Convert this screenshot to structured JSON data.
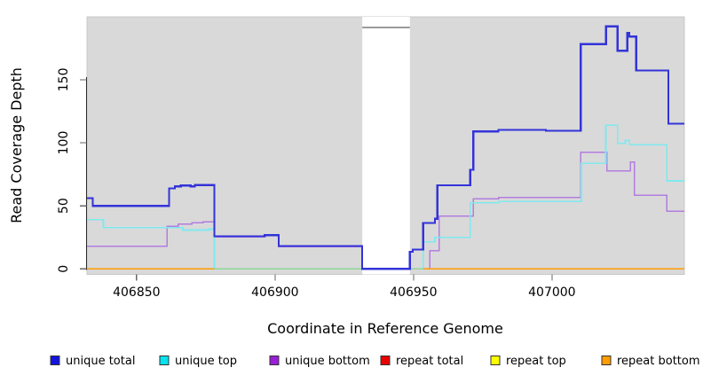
{
  "chart_data": {
    "type": "line",
    "subtype": "step-coverage-plot",
    "title": "",
    "xlabel": "Coordinate in Reference Genome",
    "ylabel": "Read Coverage Depth",
    "xlim": [
      406832.1,
      407047.8
    ],
    "ylim": [
      0,
      200
    ],
    "x_ticks": [
      406850,
      406900,
      406950,
      407000
    ],
    "y_ticks": [
      0,
      50,
      100,
      150
    ],
    "panel_background": "#d9d9d9",
    "panel_border_color": "#c8c8c8",
    "axis_color": "#2b2b2b",
    "tick_color": "#666666",
    "masked_region": {
      "from": 406931.5,
      "to": 406948.7,
      "color": "#ffffff",
      "top_edge_value": 191.4,
      "top_edge_color": "#9a9a9a"
    },
    "series": [
      {
        "id": "repeat-total",
        "name": "repeat total",
        "line_color": "#e80202",
        "legend_color": "#e80202",
        "step_points": [
          [
            406832.1,
            0
          ]
        ]
      },
      {
        "id": "repeat-top",
        "name": "repeat top",
        "line_color": "#fdfd02",
        "legend_color": "#fdfd02",
        "step_points": [
          [
            406832.1,
            0
          ]
        ]
      },
      {
        "id": "repeat-bottom",
        "name": "repeat bottom",
        "line_color": "#ff9c00",
        "legend_color": "#ff9c00",
        "step_points": [
          [
            406832.1,
            0
          ]
        ]
      },
      {
        "id": "unique-bottom",
        "name": "unique bottom",
        "line_color": "#b27de0",
        "legend_color": "#9a1ed6",
        "step_points": [
          [
            406832.1,
            18
          ],
          [
            406861,
            33.9
          ],
          [
            406865,
            35.6
          ],
          [
            406870,
            36.7
          ],
          [
            406874,
            37.4
          ],
          [
            406878.1,
            25.4
          ],
          [
            406896.3,
            26.4
          ],
          [
            406901.3,
            17.8
          ],
          [
            406931.5,
            0
          ],
          [
            406955.9,
            14.6
          ],
          [
            406959.3,
            41.9
          ],
          [
            406971.6,
            55.5
          ],
          [
            406980.7,
            56.5
          ],
          [
            407010.3,
            92.4
          ],
          [
            407019.9,
            77.7
          ],
          [
            407028.3,
            84.8
          ],
          [
            407029.8,
            58.5
          ],
          [
            407041.5,
            45.7
          ]
        ]
      },
      {
        "id": "unique-top",
        "name": "unique top",
        "line_color": "#7fe9ef",
        "legend_color": "#06e3ee",
        "step_points": [
          [
            406832.1,
            39.1
          ],
          [
            406838,
            32.8
          ],
          [
            406866.7,
            30.8
          ],
          [
            406876,
            31.5
          ],
          [
            406878.1,
            0
          ],
          [
            406953.5,
            21.6
          ],
          [
            406957.7,
            25
          ],
          [
            406970.5,
            52.5
          ],
          [
            406980.7,
            53.5
          ],
          [
            407010.6,
            83.6
          ],
          [
            407019.4,
            114
          ],
          [
            407023.7,
            99.5
          ],
          [
            407026.5,
            101.9
          ],
          [
            407028,
            98.4
          ],
          [
            407041.5,
            69.8
          ]
        ]
      },
      {
        "id": "unique-total",
        "name": "unique total",
        "line_color": "#3333d9",
        "legend_color": "#1414dd",
        "step_points": [
          [
            406832.1,
            56
          ],
          [
            406834.2,
            50
          ],
          [
            406861.7,
            63.8
          ],
          [
            406863.8,
            65.4
          ],
          [
            406866,
            66.1
          ],
          [
            406869.5,
            65.4
          ],
          [
            406871,
            66.5
          ],
          [
            406878.1,
            25.9
          ],
          [
            406896.3,
            26.8
          ],
          [
            406901.3,
            18.1
          ],
          [
            406931.5,
            0
          ],
          [
            406948.7,
            13.5
          ],
          [
            406949.7,
            15.3
          ],
          [
            406953.5,
            36.3
          ],
          [
            406957.7,
            39.8
          ],
          [
            406958.6,
            66.3
          ],
          [
            406970.5,
            78.5
          ],
          [
            406971.6,
            108.9
          ],
          [
            406980.7,
            110.2
          ],
          [
            406997.8,
            109.4
          ],
          [
            407010.4,
            178.2
          ],
          [
            407019.5,
            192.3
          ],
          [
            407023.7,
            172.9
          ],
          [
            407027.2,
            187
          ],
          [
            407027.9,
            184.1
          ],
          [
            407030.4,
            157.2
          ],
          [
            407042,
            115.2
          ]
        ]
      }
    ],
    "zero_line_overlays": [
      {
        "from": 406832.1,
        "to": 406878.1,
        "color": "#ff9c00"
      },
      {
        "from": 406878.1,
        "to": 406931.5,
        "color": "#8ed69a"
      },
      {
        "from": 406948.7,
        "to": 406953.5,
        "color": "#8ed69a"
      },
      {
        "from": 406953.5,
        "to": 407047.8,
        "color": "#ff9c00"
      }
    ],
    "legend": [
      {
        "label": "unique total",
        "color": "#1414dd"
      },
      {
        "label": "unique top",
        "color": "#06e3ee"
      },
      {
        "label": "unique bottom",
        "color": "#9a1ed6"
      },
      {
        "label": "repeat total",
        "color": "#e80202"
      },
      {
        "label": "repeat top",
        "color": "#fdfd02"
      },
      {
        "label": "repeat bottom",
        "color": "#ff9c00"
      }
    ]
  }
}
